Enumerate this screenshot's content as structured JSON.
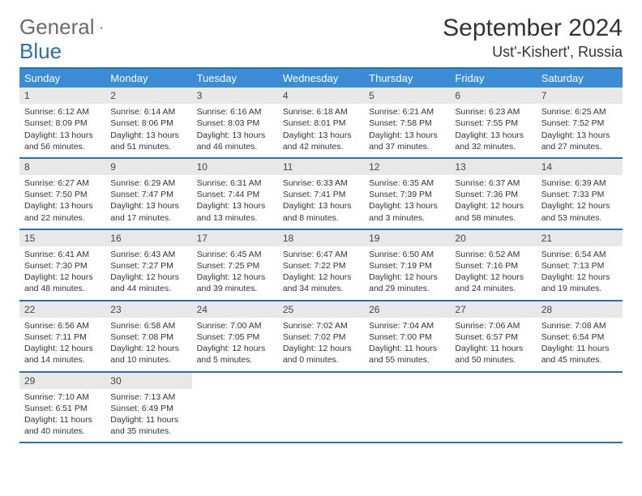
{
  "logo": {
    "text1": "General",
    "text2": "Blue"
  },
  "title": "September 2024",
  "location": "Ust'-Kishert', Russia",
  "colors": {
    "header_bg": "#3a8dd4",
    "border": "#2a6db8",
    "daynum_bg": "#e8e8e8",
    "page_bg": "#ffffff",
    "text": "#333333",
    "header_text": "#ffffff"
  },
  "dow": [
    "Sunday",
    "Monday",
    "Tuesday",
    "Wednesday",
    "Thursday",
    "Friday",
    "Saturday"
  ],
  "weeks": [
    [
      {
        "n": 1,
        "sunrise": "6:12 AM",
        "sunset": "8:09 PM",
        "daylight": "13 hours and 56 minutes."
      },
      {
        "n": 2,
        "sunrise": "6:14 AM",
        "sunset": "8:06 PM",
        "daylight": "13 hours and 51 minutes."
      },
      {
        "n": 3,
        "sunrise": "6:16 AM",
        "sunset": "8:03 PM",
        "daylight": "13 hours and 46 minutes."
      },
      {
        "n": 4,
        "sunrise": "6:18 AM",
        "sunset": "8:01 PM",
        "daylight": "13 hours and 42 minutes."
      },
      {
        "n": 5,
        "sunrise": "6:21 AM",
        "sunset": "7:58 PM",
        "daylight": "13 hours and 37 minutes."
      },
      {
        "n": 6,
        "sunrise": "6:23 AM",
        "sunset": "7:55 PM",
        "daylight": "13 hours and 32 minutes."
      },
      {
        "n": 7,
        "sunrise": "6:25 AM",
        "sunset": "7:52 PM",
        "daylight": "13 hours and 27 minutes."
      }
    ],
    [
      {
        "n": 8,
        "sunrise": "6:27 AM",
        "sunset": "7:50 PM",
        "daylight": "13 hours and 22 minutes."
      },
      {
        "n": 9,
        "sunrise": "6:29 AM",
        "sunset": "7:47 PM",
        "daylight": "13 hours and 17 minutes."
      },
      {
        "n": 10,
        "sunrise": "6:31 AM",
        "sunset": "7:44 PM",
        "daylight": "13 hours and 13 minutes."
      },
      {
        "n": 11,
        "sunrise": "6:33 AM",
        "sunset": "7:41 PM",
        "daylight": "13 hours and 8 minutes."
      },
      {
        "n": 12,
        "sunrise": "6:35 AM",
        "sunset": "7:39 PM",
        "daylight": "13 hours and 3 minutes."
      },
      {
        "n": 13,
        "sunrise": "6:37 AM",
        "sunset": "7:36 PM",
        "daylight": "12 hours and 58 minutes."
      },
      {
        "n": 14,
        "sunrise": "6:39 AM",
        "sunset": "7:33 PM",
        "daylight": "12 hours and 53 minutes."
      }
    ],
    [
      {
        "n": 15,
        "sunrise": "6:41 AM",
        "sunset": "7:30 PM",
        "daylight": "12 hours and 48 minutes."
      },
      {
        "n": 16,
        "sunrise": "6:43 AM",
        "sunset": "7:27 PM",
        "daylight": "12 hours and 44 minutes."
      },
      {
        "n": 17,
        "sunrise": "6:45 AM",
        "sunset": "7:25 PM",
        "daylight": "12 hours and 39 minutes."
      },
      {
        "n": 18,
        "sunrise": "6:47 AM",
        "sunset": "7:22 PM",
        "daylight": "12 hours and 34 minutes."
      },
      {
        "n": 19,
        "sunrise": "6:50 AM",
        "sunset": "7:19 PM",
        "daylight": "12 hours and 29 minutes."
      },
      {
        "n": 20,
        "sunrise": "6:52 AM",
        "sunset": "7:16 PM",
        "daylight": "12 hours and 24 minutes."
      },
      {
        "n": 21,
        "sunrise": "6:54 AM",
        "sunset": "7:13 PM",
        "daylight": "12 hours and 19 minutes."
      }
    ],
    [
      {
        "n": 22,
        "sunrise": "6:56 AM",
        "sunset": "7:11 PM",
        "daylight": "12 hours and 14 minutes."
      },
      {
        "n": 23,
        "sunrise": "6:58 AM",
        "sunset": "7:08 PM",
        "daylight": "12 hours and 10 minutes."
      },
      {
        "n": 24,
        "sunrise": "7:00 AM",
        "sunset": "7:05 PM",
        "daylight": "12 hours and 5 minutes."
      },
      {
        "n": 25,
        "sunrise": "7:02 AM",
        "sunset": "7:02 PM",
        "daylight": "12 hours and 0 minutes."
      },
      {
        "n": 26,
        "sunrise": "7:04 AM",
        "sunset": "7:00 PM",
        "daylight": "11 hours and 55 minutes."
      },
      {
        "n": 27,
        "sunrise": "7:06 AM",
        "sunset": "6:57 PM",
        "daylight": "11 hours and 50 minutes."
      },
      {
        "n": 28,
        "sunrise": "7:08 AM",
        "sunset": "6:54 PM",
        "daylight": "11 hours and 45 minutes."
      }
    ],
    [
      {
        "n": 29,
        "sunrise": "7:10 AM",
        "sunset": "6:51 PM",
        "daylight": "11 hours and 40 minutes."
      },
      {
        "n": 30,
        "sunrise": "7:13 AM",
        "sunset": "6:49 PM",
        "daylight": "11 hours and 35 minutes."
      },
      null,
      null,
      null,
      null,
      null
    ]
  ],
  "labels": {
    "sunrise": "Sunrise:",
    "sunset": "Sunset:",
    "daylight": "Daylight:"
  }
}
